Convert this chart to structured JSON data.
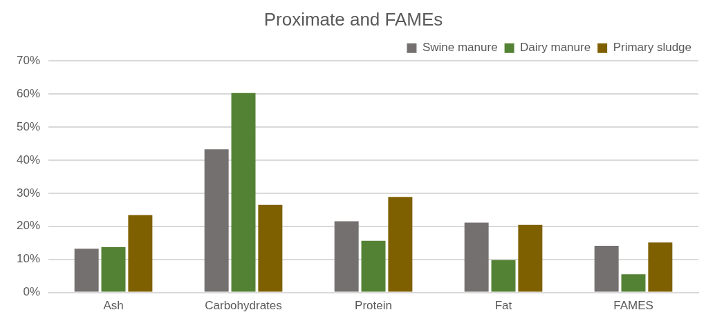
{
  "chart_data": {
    "type": "bar",
    "title": "Proximate and FAMEs",
    "categories": [
      "Ash",
      "Carbohydrates",
      "Protein",
      "Fat",
      "FAMES"
    ],
    "series": [
      {
        "name": "Swine manure",
        "color": "#757070",
        "values": [
          13.2,
          43.3,
          21.5,
          21.1,
          14.1
        ]
      },
      {
        "name": "Dairy manure",
        "color": "#548235",
        "values": [
          13.7,
          60.3,
          15.6,
          9.8,
          5.5
        ]
      },
      {
        "name": "Primary sludge",
        "color": "#7f6000",
        "values": [
          23.4,
          26.5,
          28.9,
          20.4,
          15.1
        ]
      }
    ],
    "ylim": [
      0,
      70
    ],
    "yticks": [
      {
        "value": 0,
        "label": "0%"
      },
      {
        "value": 10,
        "label": "10%"
      },
      {
        "value": 20,
        "label": "20%"
      },
      {
        "value": 30,
        "label": "30%"
      },
      {
        "value": 40,
        "label": "40%"
      },
      {
        "value": 50,
        "label": "50%"
      },
      {
        "value": 60,
        "label": "60%"
      },
      {
        "value": 70,
        "label": "70%"
      }
    ],
    "grid": "y",
    "legend": "top right"
  }
}
